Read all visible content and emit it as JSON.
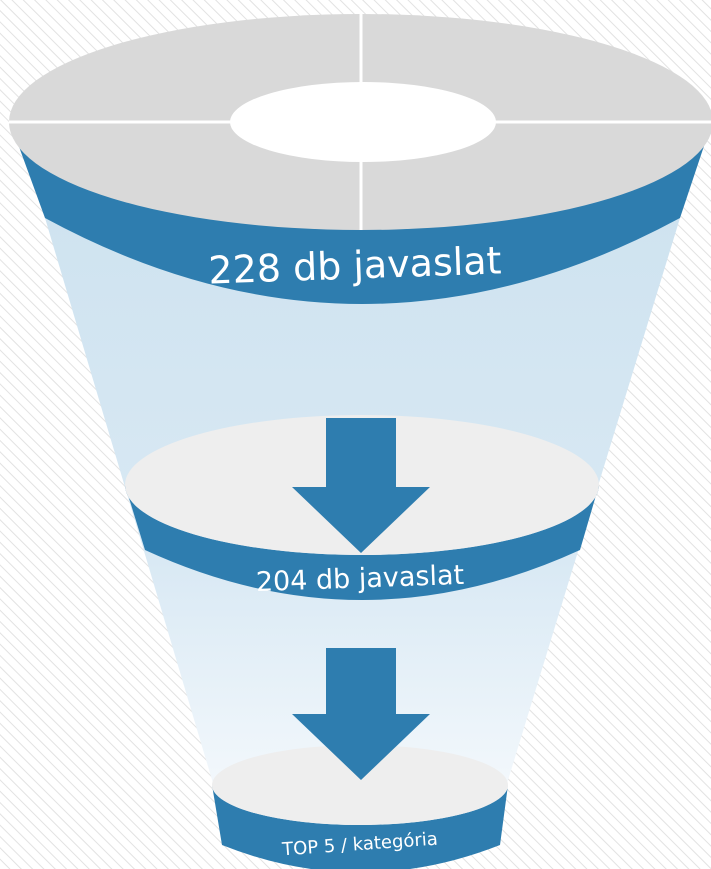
{
  "stages": [
    {
      "label": "228 db javaslat"
    },
    {
      "label": "204 db javaslat"
    },
    {
      "label": "TOP 5 / kategória"
    }
  ]
}
